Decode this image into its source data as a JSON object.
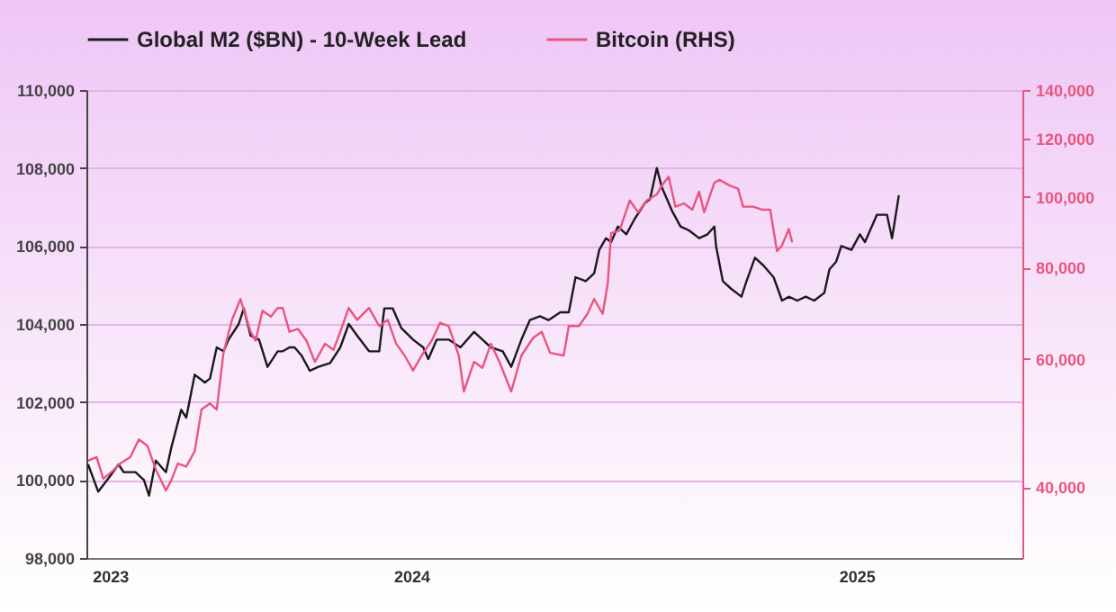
{
  "chart_data": {
    "type": "line",
    "log": "y2",
    "grid": "y",
    "legend": "top",
    "xlim": [
      "2023-12-13",
      "2025-06-18"
    ],
    "xticks": [
      {
        "value": "2023-12-27",
        "label": "2023"
      },
      {
        "value": "2024-06-22",
        "label": "2024"
      },
      {
        "value": "2025-03-12",
        "label": "2025"
      }
    ],
    "ylim": [
      98000,
      110000
    ],
    "yticks": [
      {
        "value": 98000,
        "label": "98,000"
      },
      {
        "value": 100000,
        "label": "100,000"
      },
      {
        "value": 102000,
        "label": "102,000"
      },
      {
        "value": 104000,
        "label": "104,000"
      },
      {
        "value": 106000,
        "label": "106,000"
      },
      {
        "value": 108000,
        "label": "108,000"
      },
      {
        "value": 110000,
        "label": "110,000"
      }
    ],
    "y2lim": [
      32000,
      140000
    ],
    "y2ticks": [
      {
        "value": 40000,
        "label": "40,000"
      },
      {
        "value": 60000,
        "label": "60,000"
      },
      {
        "value": 80000,
        "label": "80,000"
      },
      {
        "value": 100000,
        "label": "100,000"
      },
      {
        "value": 120000,
        "label": "120,000"
      },
      {
        "value": 140000,
        "label": "140,000"
      }
    ],
    "series": [
      {
        "name": "Global M2 ($BN) - 10-Week Lead",
        "color": "#1a1a1a",
        "x": [
          "2023-12-14",
          "2023-12-20",
          "2023-12-27",
          "2024-01-01",
          "2024-01-04",
          "2024-01-11",
          "2024-01-16",
          "2024-01-19",
          "2024-01-23",
          "2024-01-29",
          "2024-02-01",
          "2024-02-07",
          "2024-02-10",
          "2024-02-15",
          "2024-02-21",
          "2024-02-24",
          "2024-02-28",
          "2024-03-03",
          "2024-03-06",
          "2024-03-12",
          "2024-03-15",
          "2024-03-19",
          "2024-03-24",
          "2024-03-29",
          "2024-04-04",
          "2024-04-07",
          "2024-04-11",
          "2024-04-14",
          "2024-04-18",
          "2024-04-23",
          "2024-04-28",
          "2024-05-05",
          "2024-05-11",
          "2024-05-16",
          "2024-05-21",
          "2024-05-28",
          "2024-06-03",
          "2024-06-06",
          "2024-06-11",
          "2024-06-16",
          "2024-06-23",
          "2024-06-29",
          "2024-07-02",
          "2024-07-07",
          "2024-07-14",
          "2024-07-21",
          "2024-07-29",
          "2024-08-03",
          "2024-08-08",
          "2024-08-15",
          "2024-08-20",
          "2024-08-26",
          "2024-08-31",
          "2024-09-06",
          "2024-09-11",
          "2024-09-18",
          "2024-09-23",
          "2024-09-27",
          "2024-10-03",
          "2024-10-08",
          "2024-10-11",
          "2024-10-15",
          "2024-10-18",
          "2024-10-22",
          "2024-10-27",
          "2024-11-01",
          "2024-11-07",
          "2024-11-10",
          "2024-11-14",
          "2024-11-17",
          "2024-11-23",
          "2024-11-28",
          "2024-12-03",
          "2024-12-09",
          "2024-12-14",
          "2024-12-18",
          "2024-12-19",
          "2024-12-23",
          "2024-12-28",
          "2025-01-03",
          "2025-01-06",
          "2025-01-11",
          "2025-01-16",
          "2025-01-22",
          "2025-01-27",
          "2025-01-31",
          "2025-02-05",
          "2025-02-10",
          "2025-02-15",
          "2025-02-21",
          "2025-02-24",
          "2025-02-28",
          "2025-03-03",
          "2025-03-09",
          "2025-03-14",
          "2025-03-17",
          "2025-03-21",
          "2025-03-24",
          "2025-03-30",
          "2025-04-02",
          "2025-04-06"
        ],
        "values": [
          100400,
          99700,
          100100,
          100400,
          100200,
          100200,
          100000,
          99600,
          100500,
          100200,
          100800,
          101800,
          101600,
          102700,
          102500,
          102600,
          103400,
          103300,
          103600,
          104000,
          104400,
          103700,
          103600,
          102900,
          103300,
          103300,
          103400,
          103400,
          103200,
          102800,
          102900,
          103000,
          103400,
          104000,
          103700,
          103300,
          103300,
          104400,
          104400,
          103900,
          103600,
          103400,
          103100,
          103600,
          103600,
          103400,
          103800,
          103600,
          103400,
          103300,
          102900,
          103600,
          104100,
          104200,
          104100,
          104300,
          104300,
          105200,
          105100,
          105300,
          105900,
          106200,
          106100,
          106500,
          106300,
          106700,
          107100,
          107200,
          108000,
          107500,
          106900,
          106500,
          106400,
          106200,
          106300,
          106500,
          106000,
          105100,
          104900,
          104700,
          105100,
          105700,
          105500,
          105200,
          104600,
          104700,
          104600,
          104700,
          104600,
          104800,
          105400,
          105600,
          106000,
          105900,
          106300,
          106100,
          106500,
          106800,
          106800,
          106200,
          107300
        ]
      },
      {
        "name": "Bitcoin (RHS)",
        "color": "#e8567f",
        "axis": "y2",
        "x": [
          "2023-12-14",
          "2023-12-19",
          "2023-12-23",
          "2023-12-28",
          "2024-01-02",
          "2024-01-08",
          "2024-01-13",
          "2024-01-18",
          "2024-01-23",
          "2024-01-29",
          "2024-02-01",
          "2024-02-05",
          "2024-02-10",
          "2024-02-15",
          "2024-02-19",
          "2024-02-24",
          "2024-02-28",
          "2024-03-03",
          "2024-03-08",
          "2024-03-13",
          "2024-03-19",
          "2024-03-22",
          "2024-03-26",
          "2024-03-31",
          "2024-04-04",
          "2024-04-07",
          "2024-04-11",
          "2024-04-16",
          "2024-04-21",
          "2024-04-26",
          "2024-05-02",
          "2024-05-07",
          "2024-05-11",
          "2024-05-16",
          "2024-05-21",
          "2024-05-28",
          "2024-06-03",
          "2024-06-08",
          "2024-06-13",
          "2024-06-18",
          "2024-06-23",
          "2024-06-29",
          "2024-07-04",
          "2024-07-09",
          "2024-07-14",
          "2024-07-20",
          "2024-07-23",
          "2024-07-29",
          "2024-08-03",
          "2024-08-08",
          "2024-08-13",
          "2024-08-20",
          "2024-08-26",
          "2024-09-02",
          "2024-09-07",
          "2024-09-12",
          "2024-09-20",
          "2024-09-23",
          "2024-09-29",
          "2024-10-04",
          "2024-10-08",
          "2024-10-13",
          "2024-10-16",
          "2024-10-18",
          "2024-10-23",
          "2024-10-29",
          "2024-11-03",
          "2024-11-08",
          "2024-11-14",
          "2024-11-17",
          "2024-11-21",
          "2024-11-25",
          "2024-11-30",
          "2024-12-05",
          "2024-12-09",
          "2024-12-12",
          "2024-12-18",
          "2024-12-21",
          "2024-12-27",
          "2025-01-01",
          "2025-01-04",
          "2025-01-10",
          "2025-01-15",
          "2025-01-20",
          "2025-01-24",
          "2025-01-27",
          "2025-01-31",
          "2025-02-02"
        ],
        "values": [
          43500,
          44000,
          41100,
          42000,
          43100,
          44000,
          46500,
          45600,
          42300,
          39600,
          40800,
          43100,
          42700,
          44800,
          51100,
          52100,
          51100,
          61100,
          67800,
          72400,
          65300,
          63500,
          69800,
          68500,
          70400,
          70400,
          65300,
          65900,
          63500,
          59400,
          62900,
          61700,
          65300,
          70400,
          67800,
          70400,
          66500,
          67800,
          62900,
          60600,
          57800,
          61100,
          63500,
          67200,
          66500,
          60600,
          54100,
          59400,
          58300,
          62900,
          59400,
          54100,
          60600,
          64100,
          65300,
          61100,
          60600,
          66500,
          66500,
          69100,
          72400,
          69100,
          76000,
          89100,
          89900,
          98800,
          95200,
          98800,
          100700,
          103600,
          106500,
          96900,
          97900,
          96000,
          101600,
          95200,
          104500,
          105500,
          103600,
          102600,
          96900,
          96900,
          96000,
          96000,
          84200,
          85800,
          90300,
          86600
        ]
      }
    ]
  }
}
